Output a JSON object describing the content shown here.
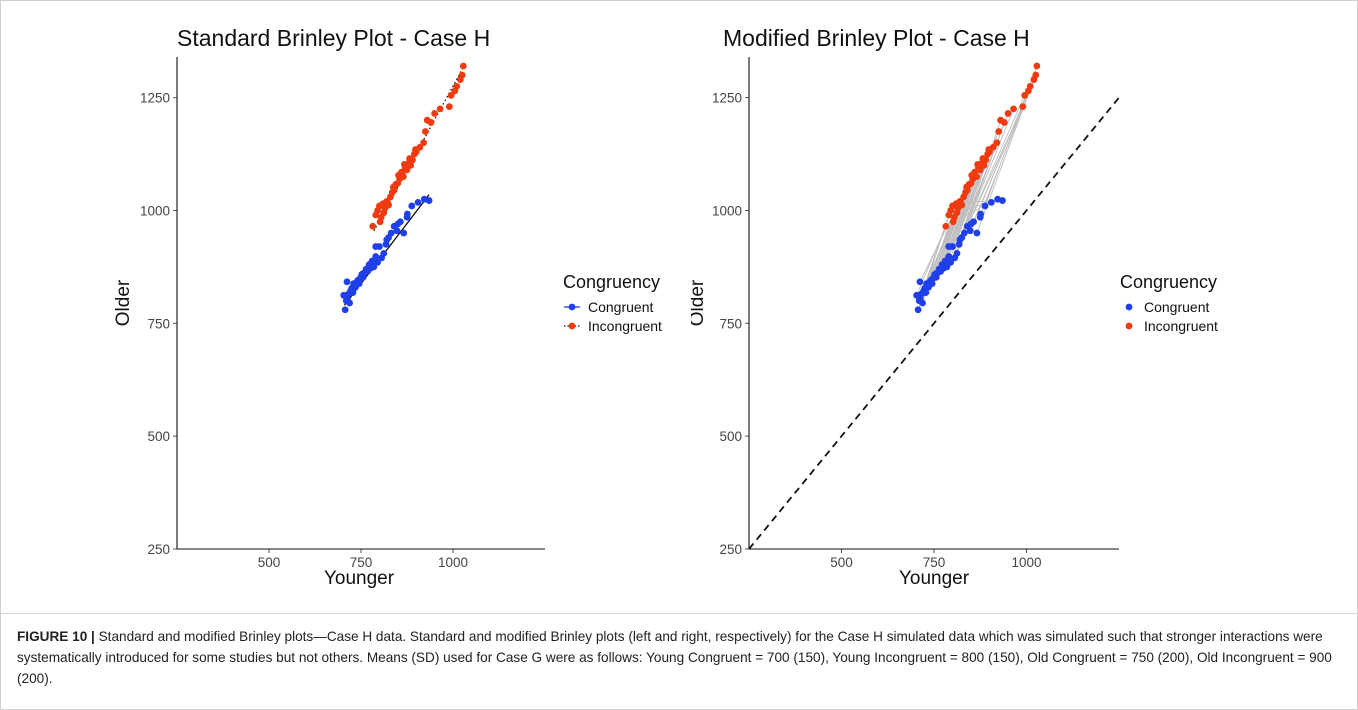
{
  "colors": {
    "congruent": "#1f3fe8",
    "incongruent": "#f03a0f",
    "connector": "#bdbdbd",
    "axis": "#111111"
  },
  "chart_data": [
    {
      "type": "scatter",
      "title": "Standard Brinley Plot - Case H",
      "xlabel": "Younger",
      "ylabel": "Older",
      "xlim": [
        250,
        1250
      ],
      "ylim": [
        250,
        1340
      ],
      "xticks": [
        "500",
        "750",
        "1000"
      ],
      "yticks": [
        "250",
        "500",
        "750",
        "1000",
        "1250"
      ],
      "legend": {
        "title": "Congruency",
        "placement": "right",
        "entries": [
          "Congruent",
          "Incongruent"
        ]
      },
      "fit_lines": [
        {
          "series": "Congruent",
          "style": "solid",
          "x": [
            705,
            935
          ],
          "y": [
            790,
            1035
          ]
        },
        {
          "series": "Incongruent",
          "style": "dotted",
          "x": [
            785,
            1030
          ],
          "y": [
            955,
            1320
          ]
        }
      ],
      "series": [
        {
          "name": "Congruent",
          "x": [
            703,
            707,
            710,
            713,
            716,
            719,
            722,
            725,
            728,
            731,
            735,
            738,
            741,
            745,
            748,
            752,
            756,
            760,
            764,
            768,
            772,
            776,
            780,
            785,
            790,
            795,
            800,
            806,
            812,
            818,
            825,
            832,
            840,
            848,
            857,
            866,
            876,
            888,
            905,
            922,
            935,
            712,
            730,
            755,
            790,
            820,
            850,
            875
          ],
          "y": [
            812,
            780,
            800,
            805,
            815,
            795,
            822,
            828,
            818,
            835,
            830,
            840,
            845,
            838,
            850,
            858,
            852,
            862,
            870,
            865,
            880,
            872,
            888,
            875,
            898,
            885,
            920,
            895,
            905,
            925,
            940,
            950,
            965,
            955,
            975,
            950,
            992,
            1010,
            1018,
            1025,
            1022,
            842,
            838,
            860,
            920,
            935,
            970,
            985
          ]
        },
        {
          "name": "Incongruent",
          "x": [
            782,
            790,
            795,
            800,
            805,
            810,
            815,
            820,
            825,
            830,
            835,
            840,
            845,
            850,
            855,
            860,
            865,
            870,
            875,
            880,
            885,
            890,
            895,
            900,
            910,
            920,
            925,
            930,
            940,
            950,
            965,
            990,
            995,
            1005,
            1010,
            1020,
            1025,
            1028,
            802,
            812,
            822,
            838,
            852,
            868,
            882,
            898
          ],
          "y": [
            965,
            990,
            1000,
            1010,
            985,
            1015,
            1005,
            1020,
            1012,
            1030,
            1040,
            1045,
            1058,
            1060,
            1070,
            1085,
            1075,
            1095,
            1090,
            1105,
            1100,
            1112,
            1125,
            1130,
            1140,
            1150,
            1175,
            1200,
            1195,
            1215,
            1225,
            1230,
            1255,
            1265,
            1275,
            1290,
            1300,
            1320,
            975,
            995,
            1018,
            1052,
            1078,
            1102,
            1115,
            1135
          ]
        }
      ]
    },
    {
      "type": "scatter",
      "title": "Modified Brinley Plot - Case H",
      "xlabel": "Younger",
      "ylabel": "Older",
      "xlim": [
        250,
        1250
      ],
      "ylim": [
        250,
        1340
      ],
      "xticks": [
        "500",
        "750",
        "1000"
      ],
      "yticks": [
        "250",
        "500",
        "750",
        "1000",
        "1250"
      ],
      "legend": {
        "title": "Congruency",
        "placement": "right",
        "entries": [
          "Congruent",
          "Incongruent"
        ]
      },
      "reference_line": {
        "style": "dashed",
        "x": [
          250,
          1250
        ],
        "y": [
          250,
          1250
        ]
      },
      "paired_connectors": true
    }
  ],
  "caption": {
    "label": "FIGURE 10 |",
    "text": " Standard and modified Brinley plots—Case H data. Standard and modified Brinley plots (left and right, respectively) for the Case H simulated data which was simulated such that stronger interactions were systematically introduced for some studies but not others. Means (SD) used for Case G were as follows: Young Congruent = 700 (150), Young Incongruent = 800 (150), Old Congruent = 750 (200), Old Incongruent = 900 (200)."
  }
}
